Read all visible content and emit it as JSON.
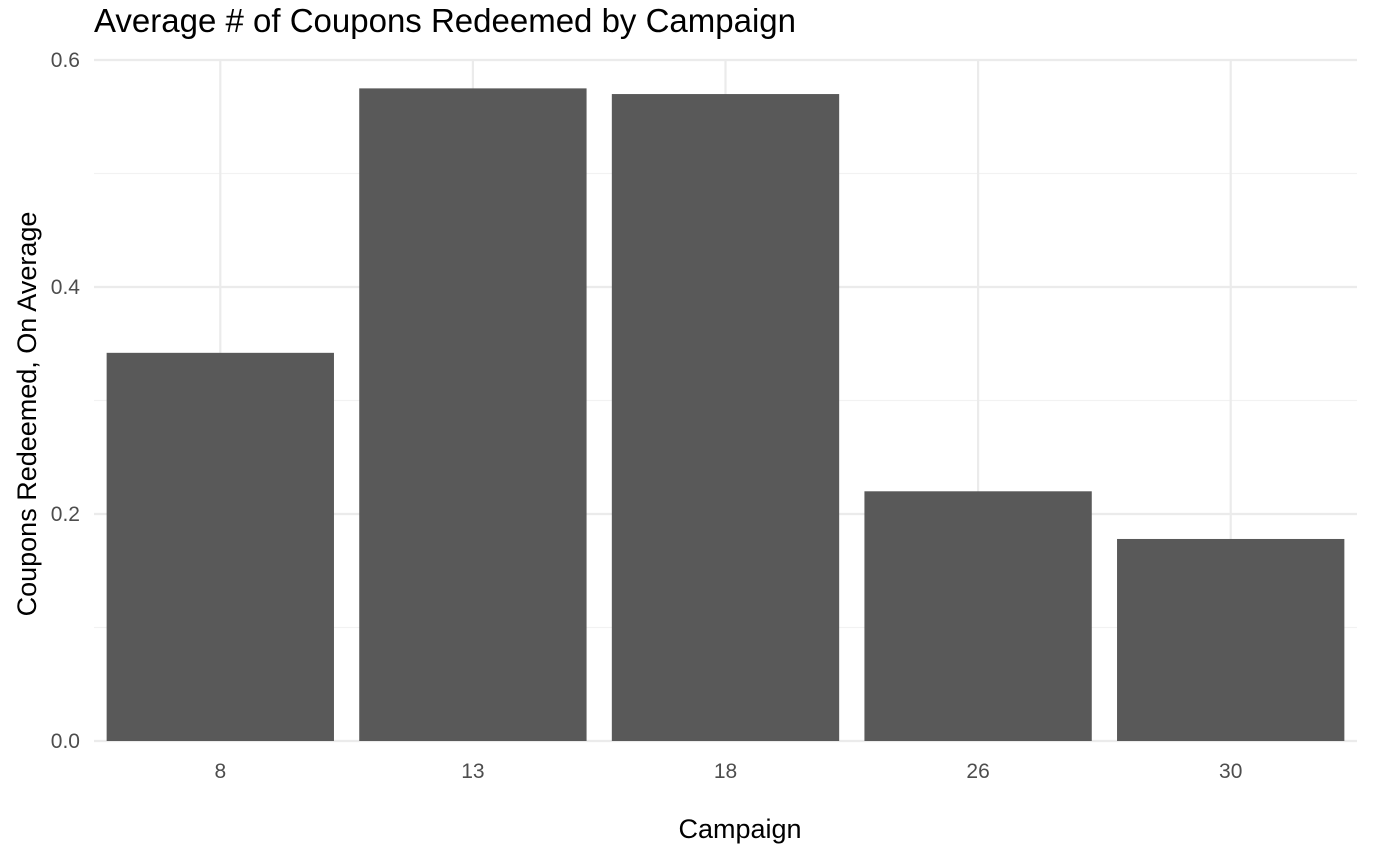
{
  "chart_data": {
    "type": "bar",
    "title": "Average # of Coupons Redeemed by Campaign",
    "xlabel": "Campaign",
    "ylabel": "Coupons Redeemed, On Average",
    "categories": [
      "8",
      "13",
      "18",
      "26",
      "30"
    ],
    "values": [
      0.342,
      0.575,
      0.57,
      0.22,
      0.178
    ],
    "ylim": [
      0,
      0.6
    ],
    "yticks": [
      "0.0",
      "0.2",
      "0.4",
      "0.6"
    ],
    "ytick_values": [
      0,
      0.2,
      0.4,
      0.6
    ],
    "grid": true,
    "legend": "none",
    "bar_color": "#595959"
  }
}
